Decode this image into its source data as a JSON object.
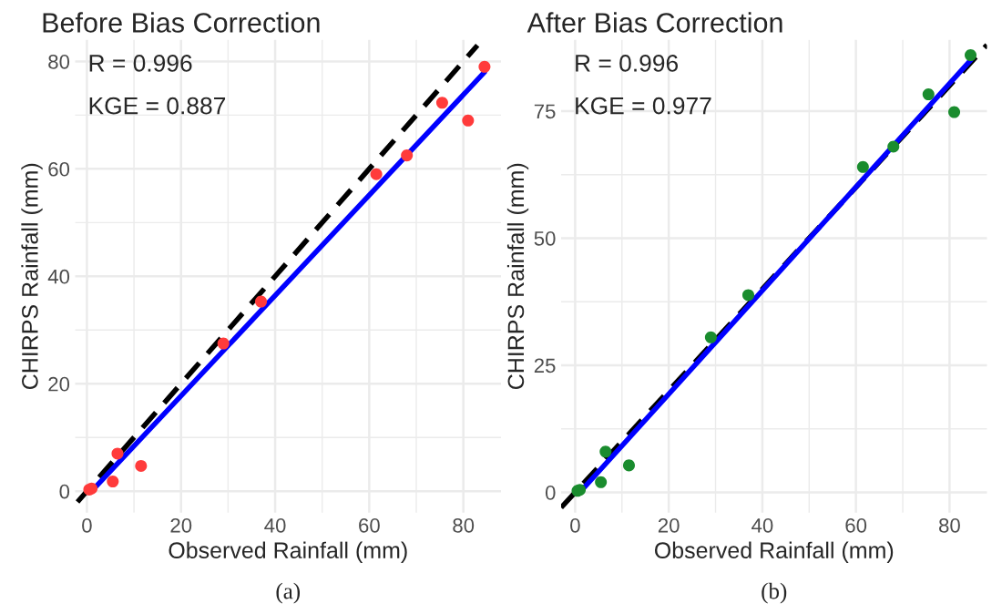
{
  "chart_data": [
    {
      "type": "scatter",
      "title": "Before Bias Correction",
      "xlabel": "Observed Rainfall (mm)",
      "ylabel": "CHIRPS Rainfall (mm)",
      "series": [
        {
          "color": "#ff3b3b",
          "marker": "circle",
          "x": [
            0.5,
            1,
            5.5,
            6.5,
            11.5,
            29,
            37,
            61.5,
            68,
            75.5,
            81,
            84.5
          ],
          "values": [
            0.3,
            0.5,
            1.8,
            7,
            4.7,
            27.5,
            35.3,
            59,
            62.5,
            72.3,
            69,
            79
          ]
        },
        {
          "type": "line",
          "color": "#000000",
          "line_style": "dashed",
          "x": [
            -2,
            83
          ],
          "values": [
            -2,
            83
          ]
        },
        {
          "type": "line",
          "color": "#0000ff",
          "line_style": "solid",
          "x": [
            1,
            84.5
          ],
          "values": [
            0,
            78
          ]
        }
      ],
      "xlim": [
        -2.5,
        88
      ],
      "ylim": [
        -4,
        84
      ],
      "xticks": [
        0,
        20,
        40,
        60,
        80
      ],
      "yticks": [
        0,
        20,
        40,
        60,
        80
      ],
      "grid": true,
      "annotations": [
        "R = 0.996",
        "KGE = 0.887",
        "(a)"
      ]
    },
    {
      "type": "scatter",
      "title": "After Bias Correction",
      "xlabel": "Observed Rainfall (mm)",
      "ylabel": "CHIRPS Rainfall (mm)",
      "series": [
        {
          "color": "#1a8c2e",
          "marker": "circle",
          "x": [
            0.5,
            1,
            5.5,
            6.5,
            11.5,
            29,
            37,
            61.5,
            68,
            75.5,
            81,
            84.5
          ],
          "values": [
            0.3,
            0.5,
            2,
            8,
            5.3,
            30.5,
            38.8,
            64,
            68,
            78.3,
            74.8,
            86
          ]
        },
        {
          "type": "line",
          "color": "#000000",
          "line_style": "dashed",
          "x": [
            -3,
            88
          ],
          "values": [
            -3,
            88
          ]
        },
        {
          "type": "line",
          "color": "#0000ff",
          "line_style": "solid",
          "x": [
            1,
            84.5
          ],
          "values": [
            0,
            85
          ]
        }
      ],
      "xlim": [
        -3,
        88
      ],
      "ylim": [
        -4,
        89
      ],
      "xticks": [
        0,
        20,
        40,
        60,
        80
      ],
      "yticks": [
        0,
        25,
        50,
        75
      ],
      "grid": true,
      "annotations": [
        "R = 0.996",
        "KGE = 0.977",
        "(b)"
      ]
    }
  ]
}
